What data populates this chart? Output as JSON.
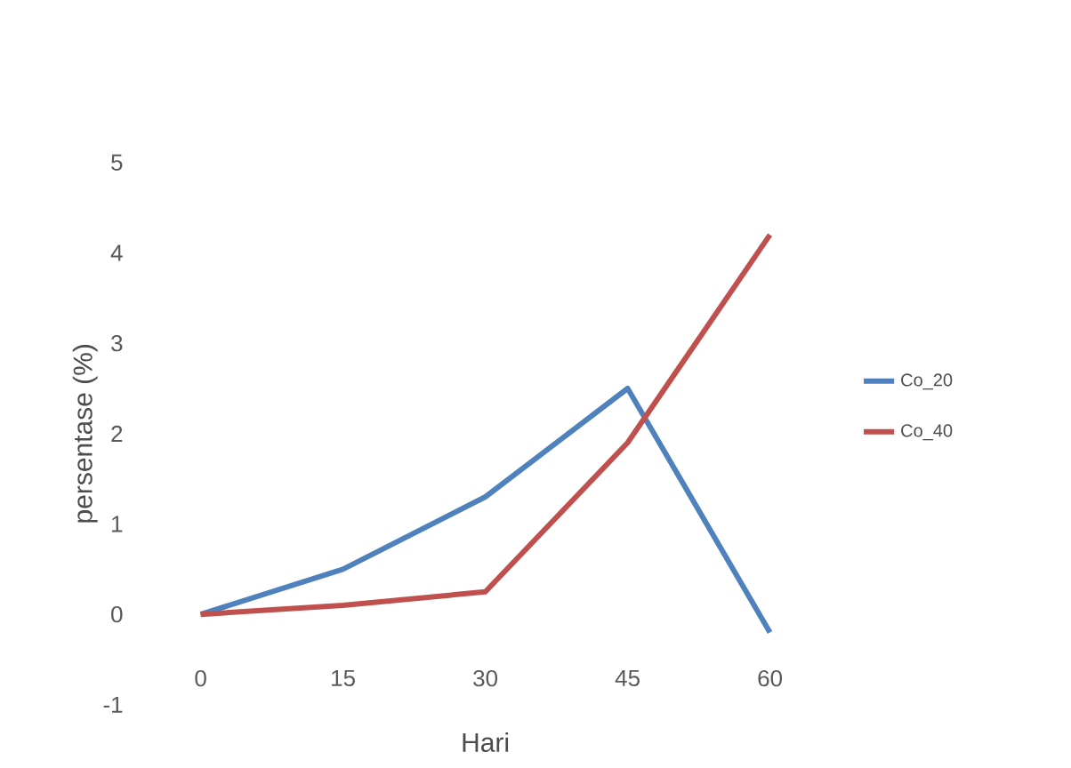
{
  "chart_data": {
    "type": "line",
    "xlabel": "Hari",
    "ylabel": "persentase (%)",
    "categories": [
      "0",
      "15",
      "30",
      "45",
      "60"
    ],
    "series": [
      {
        "name": "Co_20",
        "color": "#4f81bd",
        "values": [
          0,
          0.5,
          1.3,
          2.5,
          -0.2
        ]
      },
      {
        "name": "Co_40",
        "color": "#c0504d",
        "values": [
          0,
          0.1,
          0.25,
          1.9,
          4.2
        ]
      }
    ],
    "ylim": [
      -1,
      5
    ],
    "yticks": [
      -1,
      0,
      1,
      2,
      3,
      4,
      5
    ],
    "grid": false,
    "legend": "right",
    "marker": "none",
    "line_style": "solid"
  }
}
